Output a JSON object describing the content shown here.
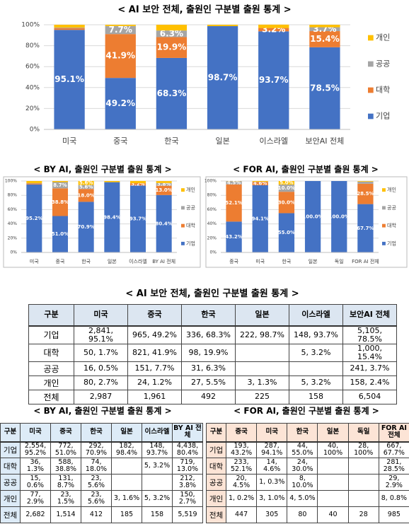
{
  "chart_data": [
    {
      "type": "bar",
      "stacked": true,
      "title": "< AI 보안 전체, 출원인 구분별 출원 통계 >",
      "categories": [
        "미국",
        "중국",
        "한국",
        "일본",
        "이스라엘",
        "보안AI 전체"
      ],
      "ylim": [
        0,
        100
      ],
      "yticks": [
        {
          "value": 0,
          "label": "0%"
        },
        {
          "value": 20,
          "label": "20%"
        },
        {
          "value": 40,
          "label": "40%"
        },
        {
          "value": 60,
          "label": "60%"
        },
        {
          "value": 80,
          "label": "80%"
        },
        {
          "value": 100,
          "label": "100%"
        }
      ],
      "grid": true,
      "legend": "right",
      "series": [
        {
          "name": "기업",
          "color": "#4472c4",
          "values": [
            95.1,
            49.2,
            68.3,
            98.7,
            93.7,
            78.5
          ],
          "value_labels": [
            "95.1%",
            "49.2%",
            "68.3%",
            "98.7%",
            "93.7%",
            "78.5%"
          ]
        },
        {
          "name": "대학",
          "color": "#ed7d31",
          "values": [
            1.7,
            41.9,
            19.9,
            0,
            3.2,
            15.4
          ],
          "value_labels": [
            null,
            "41.9%",
            "19.9%",
            null,
            "3.2%",
            "15.4%"
          ]
        },
        {
          "name": "공공",
          "color": "#a5a5a5",
          "values": [
            0.5,
            7.7,
            6.3,
            0,
            0,
            3.7
          ],
          "value_labels": [
            null,
            "7.7%",
            "6.3%",
            null,
            null,
            "3.7%"
          ]
        },
        {
          "name": "개인",
          "color": "#ffc000",
          "values": [
            2.7,
            1.2,
            5.5,
            1.3,
            3.2,
            2.4
          ],
          "value_labels": [
            null,
            null,
            null,
            null,
            null,
            null
          ]
        }
      ]
    },
    {
      "type": "bar",
      "stacked": true,
      "title": "< BY AI, 출원인 구분별 출원 통계 >",
      "categories": [
        "미국",
        "중국",
        "한국",
        "일본",
        "이스라엘",
        "BY AI 전체"
      ],
      "ylim": [
        0,
        100
      ],
      "yticks": [
        {
          "value": 0,
          "label": "0%"
        },
        {
          "value": 20,
          "label": "20%"
        },
        {
          "value": 40,
          "label": "40%"
        },
        {
          "value": 60,
          "label": "60%"
        },
        {
          "value": 80,
          "label": "80%"
        },
        {
          "value": 100,
          "label": "100%"
        }
      ],
      "grid": true,
      "legend": "right",
      "series": [
        {
          "name": "기업",
          "color": "#4472c4",
          "values": [
            95.2,
            51.0,
            70.9,
            98.4,
            93.7,
            80.4
          ],
          "value_labels": [
            "95.2%",
            "51.0%",
            "70.9%",
            "98.4%",
            "93.7%",
            "80.4%"
          ]
        },
        {
          "name": "대학",
          "color": "#ed7d31",
          "values": [
            1.3,
            38.8,
            18.0,
            0,
            3.2,
            13.0
          ],
          "value_labels": [
            null,
            "38.8%",
            "18.0%",
            null,
            "3.2%",
            "13.0%"
          ]
        },
        {
          "name": "공공",
          "color": "#a5a5a5",
          "values": [
            0.6,
            8.7,
            5.6,
            0,
            0,
            3.8
          ],
          "value_labels": [
            null,
            "8.7%",
            "5.6%",
            null,
            null,
            "3.8%"
          ]
        },
        {
          "name": "개인",
          "color": "#ffc000",
          "values": [
            2.9,
            1.5,
            5.6,
            1.6,
            3.2,
            2.7
          ],
          "value_labels": [
            null,
            null,
            "5.6%",
            null,
            null,
            null
          ]
        }
      ]
    },
    {
      "type": "bar",
      "stacked": true,
      "title": "< FOR AI, 출원인 구분별 출원 통계 >",
      "categories": [
        "중국",
        "미국",
        "한국",
        "일본",
        "독일",
        "FOR AI 전체"
      ],
      "ylim": [
        0,
        100
      ],
      "yticks": [
        {
          "value": 0,
          "label": "0%"
        },
        {
          "value": 20,
          "label": "20%"
        },
        {
          "value": 40,
          "label": "40%"
        },
        {
          "value": 60,
          "label": "60%"
        },
        {
          "value": 80,
          "label": "80%"
        },
        {
          "value": 100,
          "label": "100%"
        }
      ],
      "grid": true,
      "legend": "right",
      "series": [
        {
          "name": "기업",
          "color": "#4472c4",
          "values": [
            43.2,
            94.1,
            55.0,
            100.0,
            100.0,
            67.7
          ],
          "value_labels": [
            "43.2%",
            "94.1%",
            "55.0%",
            "100.0%",
            "100.0%",
            "67.7%"
          ]
        },
        {
          "name": "대학",
          "color": "#ed7d31",
          "values": [
            52.1,
            4.6,
            30.0,
            0,
            0,
            28.5
          ],
          "value_labels": [
            "52.1%",
            "4.6%",
            "30.0%",
            null,
            null,
            "28.5%"
          ]
        },
        {
          "name": "공공",
          "color": "#a5a5a5",
          "values": [
            4.5,
            0.3,
            10.0,
            0,
            0,
            2.9
          ],
          "value_labels": [
            "4.5%",
            null,
            "10.0%",
            null,
            null,
            null
          ]
        },
        {
          "name": "개인",
          "color": "#ffc000",
          "values": [
            0.2,
            1.0,
            5.0,
            0,
            0,
            0.8
          ],
          "value_labels": [
            null,
            null,
            "5.0%",
            null,
            null,
            null
          ]
        }
      ]
    }
  ],
  "tables": [
    {
      "title": "< AI 보안 전체, 출원인 구분별 출원 통계 >",
      "header": [
        "구분",
        "미국",
        "중국",
        "한국",
        "일본",
        "이스라엘",
        "보안AI 전체"
      ],
      "rows": [
        [
          "기업",
          "2,841, 95.1%",
          "965, 49.2%",
          "336, 68.3%",
          "222, 98.7%",
          "148, 93.7%",
          "5,105, 78.5%"
        ],
        [
          "대학",
          "50, 1.7%",
          "821, 41.9%",
          "98, 19.9%",
          null,
          "5, 3.2%",
          "1,000, 15.4%"
        ],
        [
          "공공",
          "16, 0.5%",
          "151, 7.7%",
          "31, 6.3%",
          null,
          null,
          "241, 3.7%"
        ],
        [
          "개인",
          "80, 2.7%",
          "24, 1.2%",
          "27, 5.5%",
          "3, 1.3%",
          "5, 3.2%",
          "158, 2.4%"
        ],
        [
          "전체",
          "2,987",
          "1,961",
          "492",
          "225",
          "158",
          "6,504"
        ]
      ]
    },
    {
      "title": "< BY AI, 출원인 구분별 출원 통계 >",
      "header": [
        "구분",
        "미국",
        "중국",
        "한국",
        "일본",
        "이스라엘",
        "BY AI 전체"
      ],
      "rows": [
        [
          "기업",
          "2,554, 95.2%",
          "772, 51.0%",
          "292, 70.9%",
          "182, 98.4%",
          "148, 93.7%",
          "4,438, 80.4%"
        ],
        [
          "대학",
          "36, 1.3%",
          "588, 38.8%",
          "74, 18.0%",
          null,
          "5, 3.2%",
          "719, 13.0%"
        ],
        [
          "공공",
          "15, 0.6%",
          "131, 8.7%",
          "23, 5.6%",
          null,
          null,
          "212, 3.8%"
        ],
        [
          "개인",
          "77, 2.9%",
          "23, 1.5%",
          "23, 5.6%",
          "3, 1.6%",
          "5, 3.2%",
          "150, 2.7%"
        ],
        [
          "전체",
          "2,682",
          "1,514",
          "412",
          "185",
          "158",
          "5,519"
        ]
      ]
    },
    {
      "title": "< FOR AI, 출원인 구분별 출원 통계 >",
      "header": [
        "구분",
        "중국",
        "미국",
        "한국",
        "일본",
        "독일",
        "FOR AI 전체"
      ],
      "rows": [
        [
          "기업",
          "193, 43.2%",
          "287, 94.1%",
          "44, 55.0%",
          "40, 100%",
          "28, 100%",
          "667, 67.7%"
        ],
        [
          "대학",
          "233, 52.1%",
          "14, 4.6%",
          "24, 30.0%",
          null,
          null,
          "281, 28.5%"
        ],
        [
          "공공",
          "20, 4.5%",
          "1, 0.3%",
          "8, 10.0%",
          null,
          null,
          "29, 2.9%"
        ],
        [
          "개인",
          "1, 0.2%",
          "3, 1.0%",
          "4, 5.0%",
          null,
          null,
          "8, 0.8%"
        ],
        [
          "전체",
          "447",
          "305",
          "80",
          "40",
          "28",
          "985"
        ]
      ]
    }
  ]
}
